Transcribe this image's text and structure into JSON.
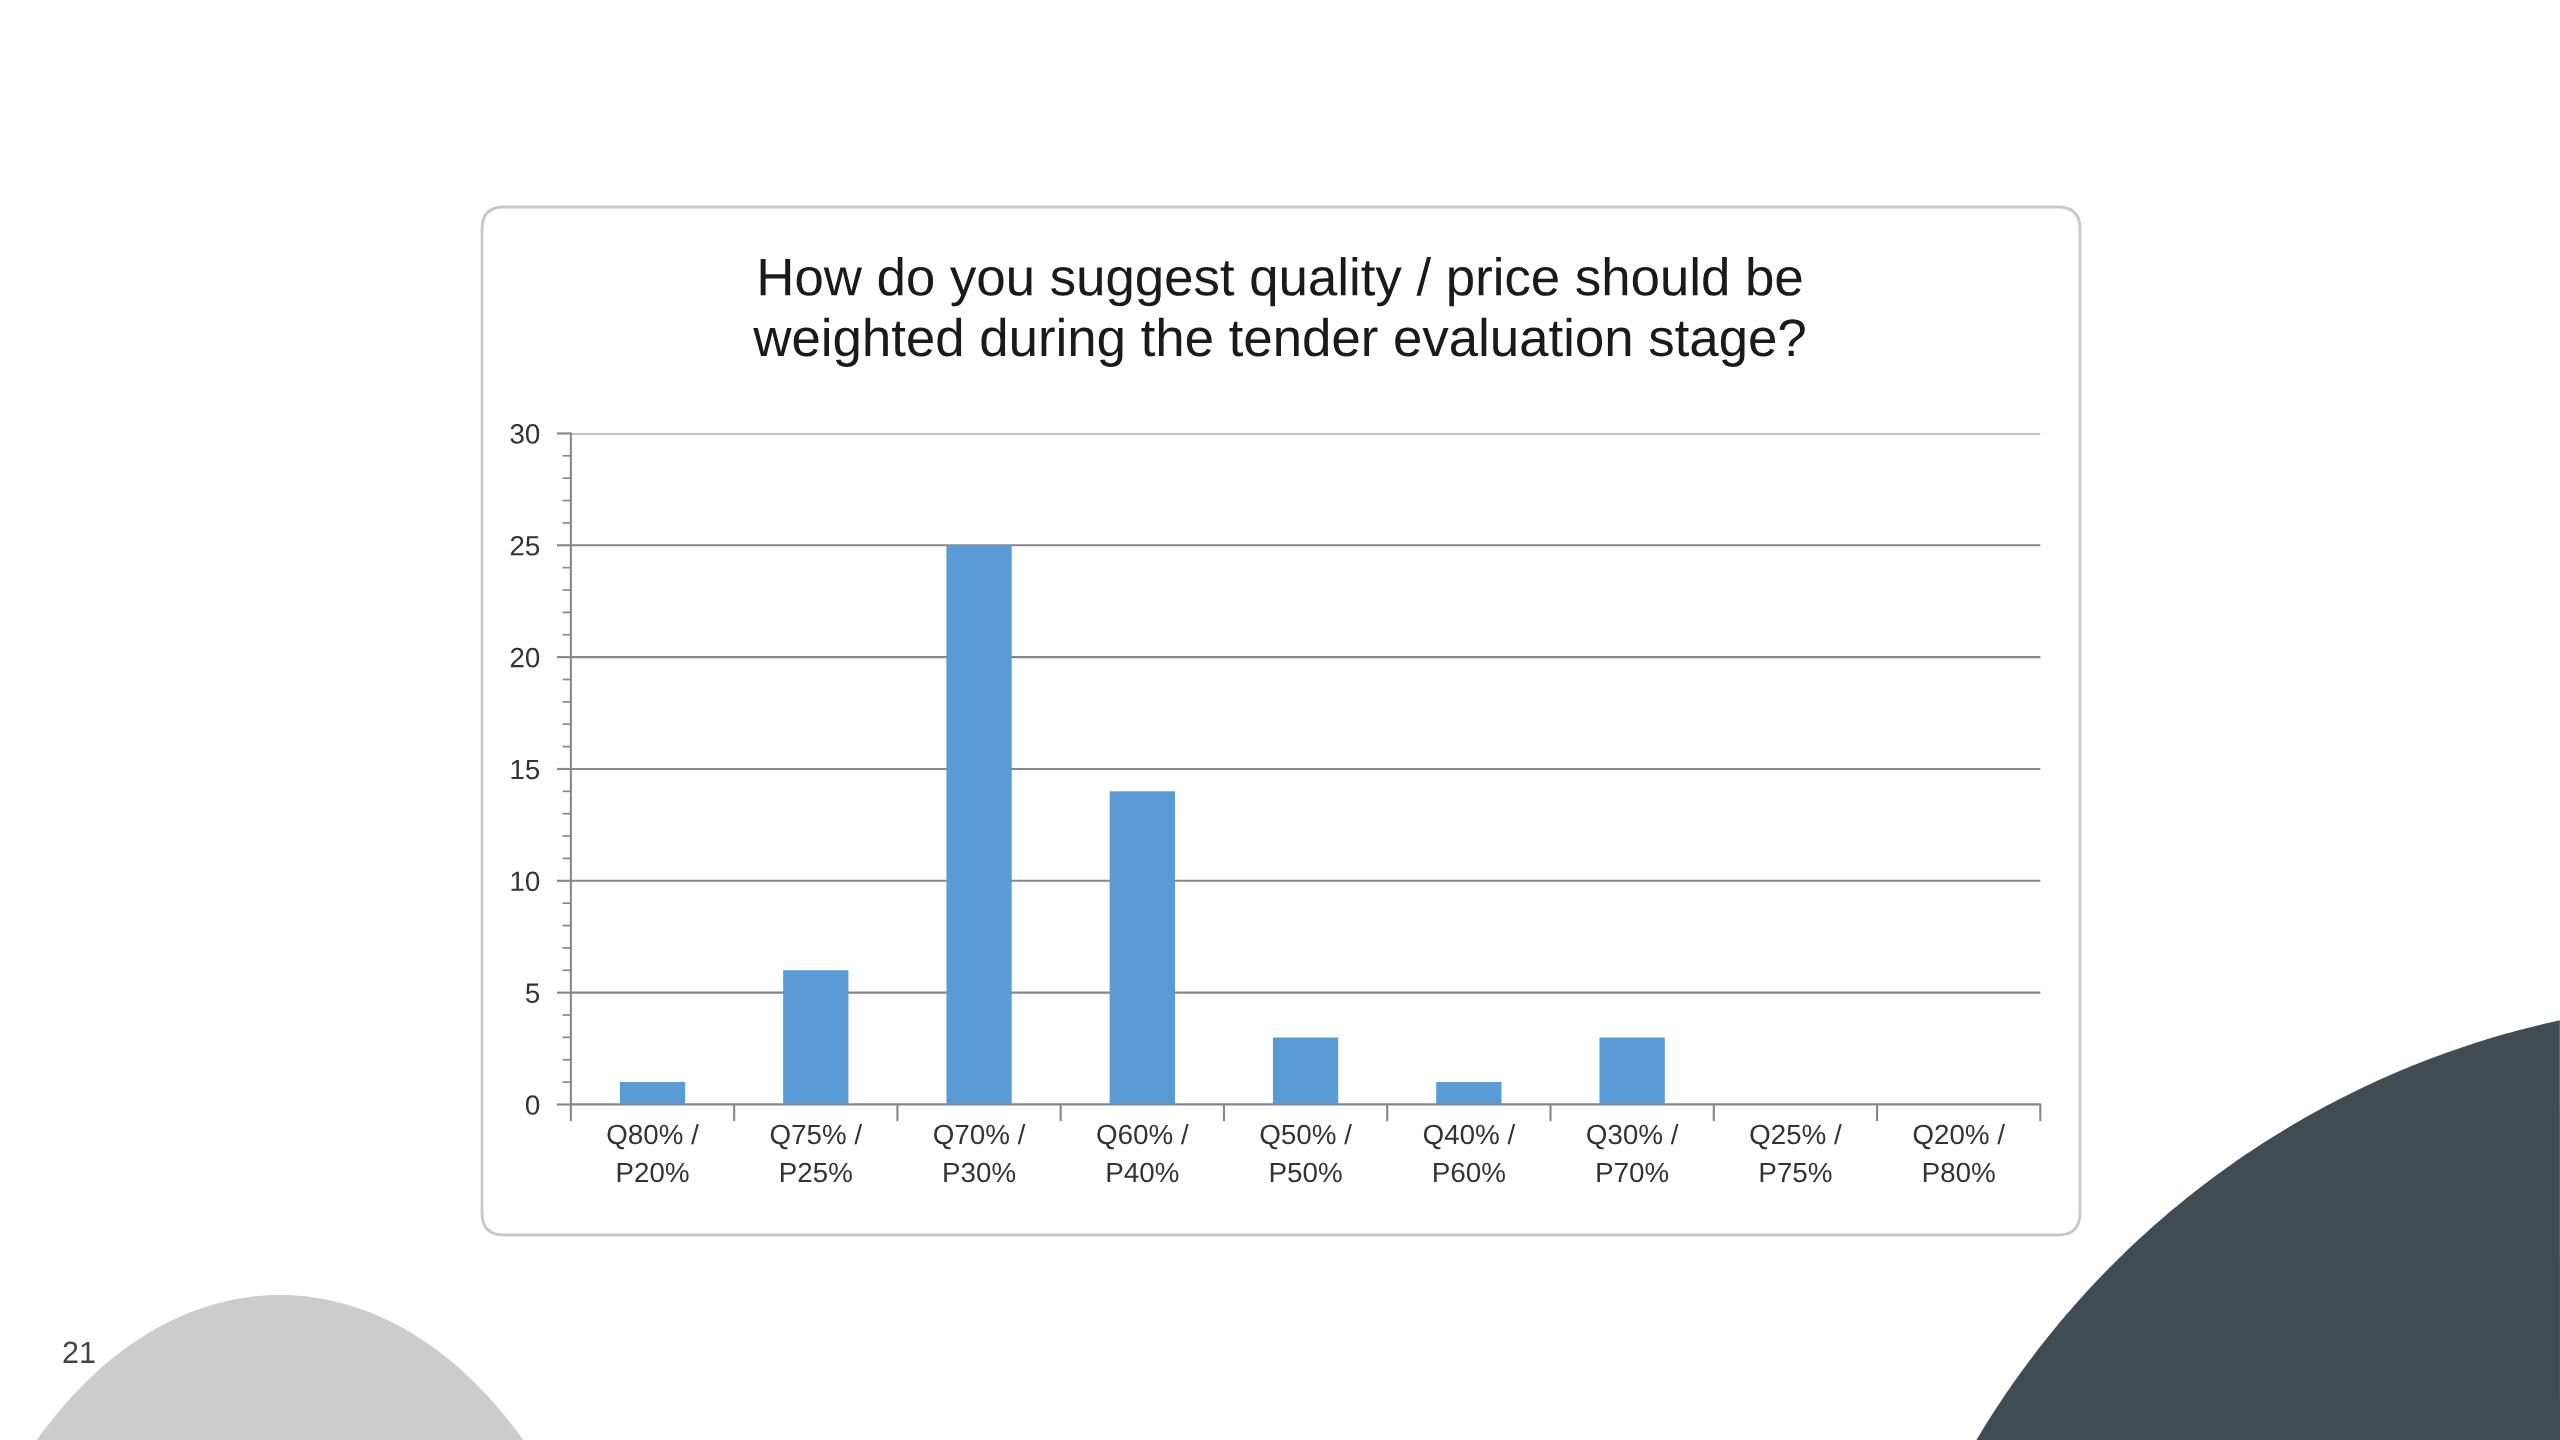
{
  "chart_data": {
    "type": "bar",
    "title": "How do you suggest quality / price should be weighted during the tender evaluation stage?",
    "categories": [
      "Q80% / P20%",
      "Q75% / P25%",
      "Q70% / P30%",
      "Q60% / P40%",
      "Q50% / P50%",
      "Q40% / P60%",
      "Q30% / P70%",
      "Q25% / P75%",
      "Q20% / P80%"
    ],
    "values": [
      1,
      6,
      25,
      14,
      3,
      1,
      3,
      0,
      0
    ],
    "color": "#5b9bd5",
    "ylim": [
      0,
      30
    ],
    "yticks": [
      0,
      5,
      10,
      15,
      20,
      25,
      30
    ],
    "grid": "y",
    "annotations": [
      "21"
    ]
  }
}
